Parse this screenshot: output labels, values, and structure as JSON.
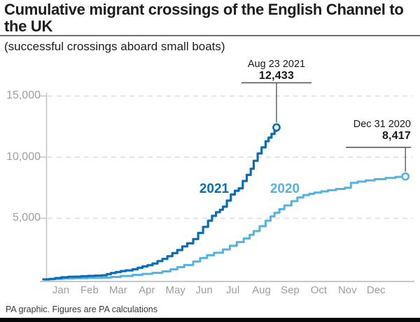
{
  "header": {
    "title": "Cumulative migrant crossings of the English Channel to the UK",
    "subtitle": "(successful crossings aboard small boats)"
  },
  "footer": {
    "credit": "PA graphic. Figures are PA calculations"
  },
  "colors": {
    "series_2021": "#0b6db6",
    "series_2020": "#54b3e2",
    "axis_line": "#c8c8c8",
    "gridline": "#dcdcdc",
    "annotation_line": "#4d4d4d",
    "axis_text": "#9e9e9e",
    "text": "#1d1d1b"
  },
  "chart_data": {
    "type": "line",
    "title": "Cumulative migrant crossings of the English Channel to the UK",
    "subtitle": "(successful crossings aboard small boats)",
    "xlabel": "",
    "ylabel": "",
    "x_unit": "day of year (Jan 1 = 0)",
    "xlim_days": [
      0,
      365
    ],
    "ylim": [
      0,
      15000
    ],
    "grid": "dashed horizontal",
    "legend_position": "inline labels on chart",
    "month_labels": [
      "Jan",
      "Feb",
      "Mar",
      "Apr",
      "May",
      "Jun",
      "Jul",
      "Aug",
      "Sep",
      "Oct",
      "Nov",
      "Dec"
    ],
    "y_axis": {
      "tick_values": [
        15000,
        10000,
        5000
      ],
      "tick_labels": [
        "15,000",
        "10,000",
        "5,000"
      ]
    },
    "series": [
      {
        "name": "2020",
        "color": "#54b3e2",
        "end_day": 365,
        "end_value": 8417,
        "annotation": {
          "date": "Dec 31 2020",
          "value": "8,417"
        },
        "points": [
          [
            0,
            0
          ],
          [
            10,
            40
          ],
          [
            20,
            70
          ],
          [
            31,
            94
          ],
          [
            45,
            120
          ],
          [
            59,
            145
          ],
          [
            68,
            200
          ],
          [
            78,
            280
          ],
          [
            90,
            371
          ],
          [
            100,
            450
          ],
          [
            110,
            540
          ],
          [
            120,
            657
          ],
          [
            128,
            820
          ],
          [
            135,
            1000
          ],
          [
            142,
            1180
          ],
          [
            151,
            1465
          ],
          [
            158,
            1750
          ],
          [
            165,
            1980
          ],
          [
            172,
            2180
          ],
          [
            181,
            2450
          ],
          [
            188,
            2750
          ],
          [
            195,
            3050
          ],
          [
            202,
            3350
          ],
          [
            208,
            3650
          ],
          [
            212,
            3950
          ],
          [
            218,
            4350
          ],
          [
            224,
            4800
          ],
          [
            229,
            5150
          ],
          [
            233,
            5450
          ],
          [
            238,
            5750
          ],
          [
            243,
            6050
          ],
          [
            250,
            6400
          ],
          [
            256,
            6700
          ],
          [
            262,
            6900
          ],
          [
            268,
            7000
          ],
          [
            273,
            7100
          ],
          [
            280,
            7200
          ],
          [
            287,
            7300
          ],
          [
            295,
            7400
          ],
          [
            304,
            7500
          ],
          [
            310,
            7900
          ],
          [
            317,
            8000
          ],
          [
            325,
            8100
          ],
          [
            334,
            8200
          ],
          [
            345,
            8300
          ],
          [
            355,
            8380
          ],
          [
            365,
            8417
          ]
        ]
      },
      {
        "name": "2021",
        "color": "#0b6db6",
        "end_day": 235,
        "end_value": 12433,
        "annotation": {
          "date": "Aug 23 2021",
          "value": "12,433"
        },
        "points": [
          [
            0,
            0
          ],
          [
            6,
            40
          ],
          [
            12,
            110
          ],
          [
            18,
            170
          ],
          [
            25,
            215
          ],
          [
            31,
            223
          ],
          [
            38,
            255
          ],
          [
            45,
            285
          ],
          [
            52,
            310
          ],
          [
            59,
            339
          ],
          [
            64,
            430
          ],
          [
            68,
            520
          ],
          [
            73,
            600
          ],
          [
            78,
            680
          ],
          [
            83,
            740
          ],
          [
            90,
            831
          ],
          [
            95,
            950
          ],
          [
            100,
            1060
          ],
          [
            105,
            1160
          ],
          [
            110,
            1300
          ],
          [
            115,
            1500
          ],
          [
            120,
            1677
          ],
          [
            125,
            1900
          ],
          [
            130,
            2150
          ],
          [
            135,
            2400
          ],
          [
            140,
            2700
          ],
          [
            145,
            2950
          ],
          [
            151,
            3300
          ],
          [
            156,
            3800
          ],
          [
            161,
            4300
          ],
          [
            166,
            4800
          ],
          [
            170,
            5200
          ],
          [
            174,
            5500
          ],
          [
            178,
            5700
          ],
          [
            181,
            5950
          ],
          [
            185,
            6450
          ],
          [
            189,
            6950
          ],
          [
            193,
            7250
          ],
          [
            197,
            7450
          ],
          [
            201,
            8050
          ],
          [
            205,
            8550
          ],
          [
            209,
            9050
          ],
          [
            212,
            9700
          ],
          [
            216,
            10300
          ],
          [
            220,
            10800
          ],
          [
            224,
            11300
          ],
          [
            227,
            11600
          ],
          [
            230,
            11900
          ],
          [
            233,
            12150
          ],
          [
            235,
            12433
          ]
        ]
      }
    ]
  }
}
